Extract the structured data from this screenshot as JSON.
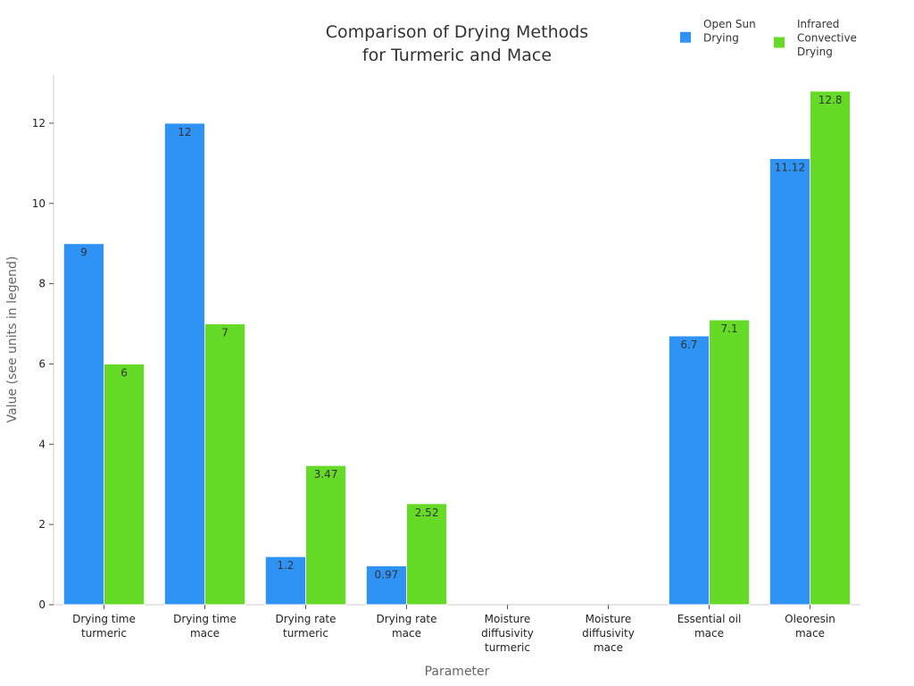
{
  "chart_data": {
    "type": "bar",
    "title": [
      "Comparison of Drying Methods",
      "for Turmeric and Mace"
    ],
    "xlabel": "Parameter",
    "ylabel": "Value (see units in legend)",
    "ylim": [
      0,
      13.2
    ],
    "yticks": [
      0,
      2,
      4,
      6,
      8,
      10,
      12
    ],
    "grid": false,
    "legend_position": "top-right",
    "categories": [
      [
        "Drying time",
        "turmeric"
      ],
      [
        "Drying time",
        "mace"
      ],
      [
        "Drying rate",
        "turmeric"
      ],
      [
        "Drying rate",
        "mace"
      ],
      [
        "Moisture",
        "diffusivity",
        "turmeric"
      ],
      [
        "Moisture",
        "diffusivity",
        "mace"
      ],
      [
        "Essential oil",
        "mace"
      ],
      [
        "Oleoresin",
        "mace"
      ]
    ],
    "series": [
      {
        "name": [
          "Open Sun",
          "Drying"
        ],
        "color": "#2f93f5",
        "values": [
          9,
          12,
          1.2,
          0.97,
          0,
          0,
          6.7,
          11.12
        ],
        "labels": [
          "9",
          "12",
          "1.2",
          "0.97",
          "",
          "",
          "6.7",
          "11.12"
        ]
      },
      {
        "name": [
          "Infrared",
          "Convective",
          "Drying"
        ],
        "color": "#66db27",
        "values": [
          6,
          7,
          3.47,
          2.52,
          0,
          0,
          7.1,
          12.8
        ],
        "labels": [
          "6",
          "7",
          "3.47",
          "2.52",
          "",
          "",
          "7.1",
          "12.8"
        ]
      }
    ]
  }
}
